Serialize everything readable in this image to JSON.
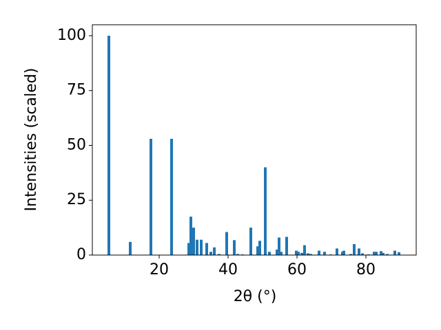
{
  "chart_data": {
    "type": "bar",
    "xlabel": "2θ (°)",
    "ylabel": "Intensities (scaled)",
    "x": [
      5.4,
      11.6,
      17.6,
      23.6,
      28.6,
      29.2,
      30,
      31,
      32.2,
      33.8,
      35,
      36,
      37.4,
      39.6,
      41.8,
      42.8,
      44.2,
      46.6,
      48.6,
      49.2,
      50.8,
      52,
      54.2,
      54.8,
      55.4,
      57,
      59.8,
      60.4,
      61.4,
      62.2,
      63.2,
      64,
      66.4,
      68,
      69.8,
      71.6,
      73.2,
      73.6,
      75.6,
      76.6,
      78,
      79,
      80.8,
      82.4,
      83,
      84.4,
      85,
      86.2,
      88.4,
      89.6
    ],
    "values": [
      100,
      6,
      53,
      53,
      5.5,
      17.5,
      12.5,
      7,
      7,
      5.5,
      1.5,
      3.5,
      0.5,
      10.5,
      6.8,
      0.5,
      0.3,
      12.5,
      4,
      6.5,
      40,
      1.5,
      2.5,
      8,
      1.5,
      8.3,
      2,
      1.5,
      1,
      4.5,
      0.8,
      0.5,
      2,
      1.5,
      0.3,
      3,
      1.5,
      2,
      0.5,
      5,
      3,
      0.8,
      0.3,
      1.5,
      1.5,
      1.8,
      1,
      0.5,
      2,
      1.3
    ],
    "color": "#1f77b4",
    "xlim": [
      0.6,
      94.6
    ],
    "ylim": [
      0,
      105
    ],
    "xticks": [
      20,
      40,
      60,
      80
    ],
    "yticks": [
      0,
      25,
      50,
      75,
      100
    ]
  }
}
